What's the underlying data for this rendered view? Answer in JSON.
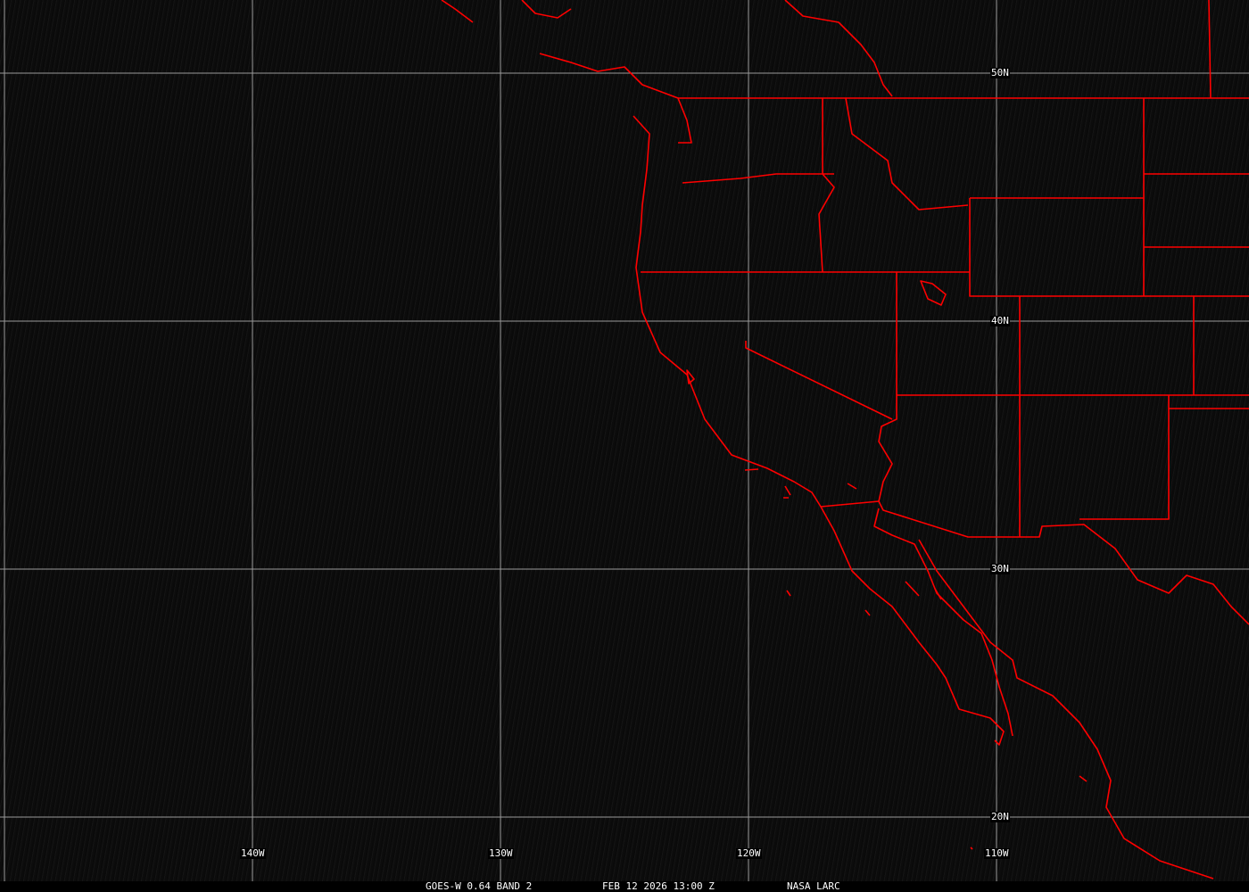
{
  "image": {
    "satellite": "GOES-W 0.64 BAND 2",
    "date_time": "FEB 12 2026 13:00 Z",
    "credit": "NASA LARC",
    "boundary_color": "#ff0000",
    "grid_color": "#9a9a9a"
  },
  "grid": {
    "lon_labels": [
      {
        "lon": -140,
        "text": "140W"
      },
      {
        "lon": -130,
        "text": "130W"
      },
      {
        "lon": -120,
        "text": "120W"
      },
      {
        "lon": -110,
        "text": "110W"
      }
    ],
    "lat_labels": [
      {
        "lat": 50,
        "text": "50N"
      },
      {
        "lat": 40,
        "text": "40N"
      },
      {
        "lat": 30,
        "text": "30N"
      },
      {
        "lat": 20,
        "text": "20N"
      }
    ]
  }
}
